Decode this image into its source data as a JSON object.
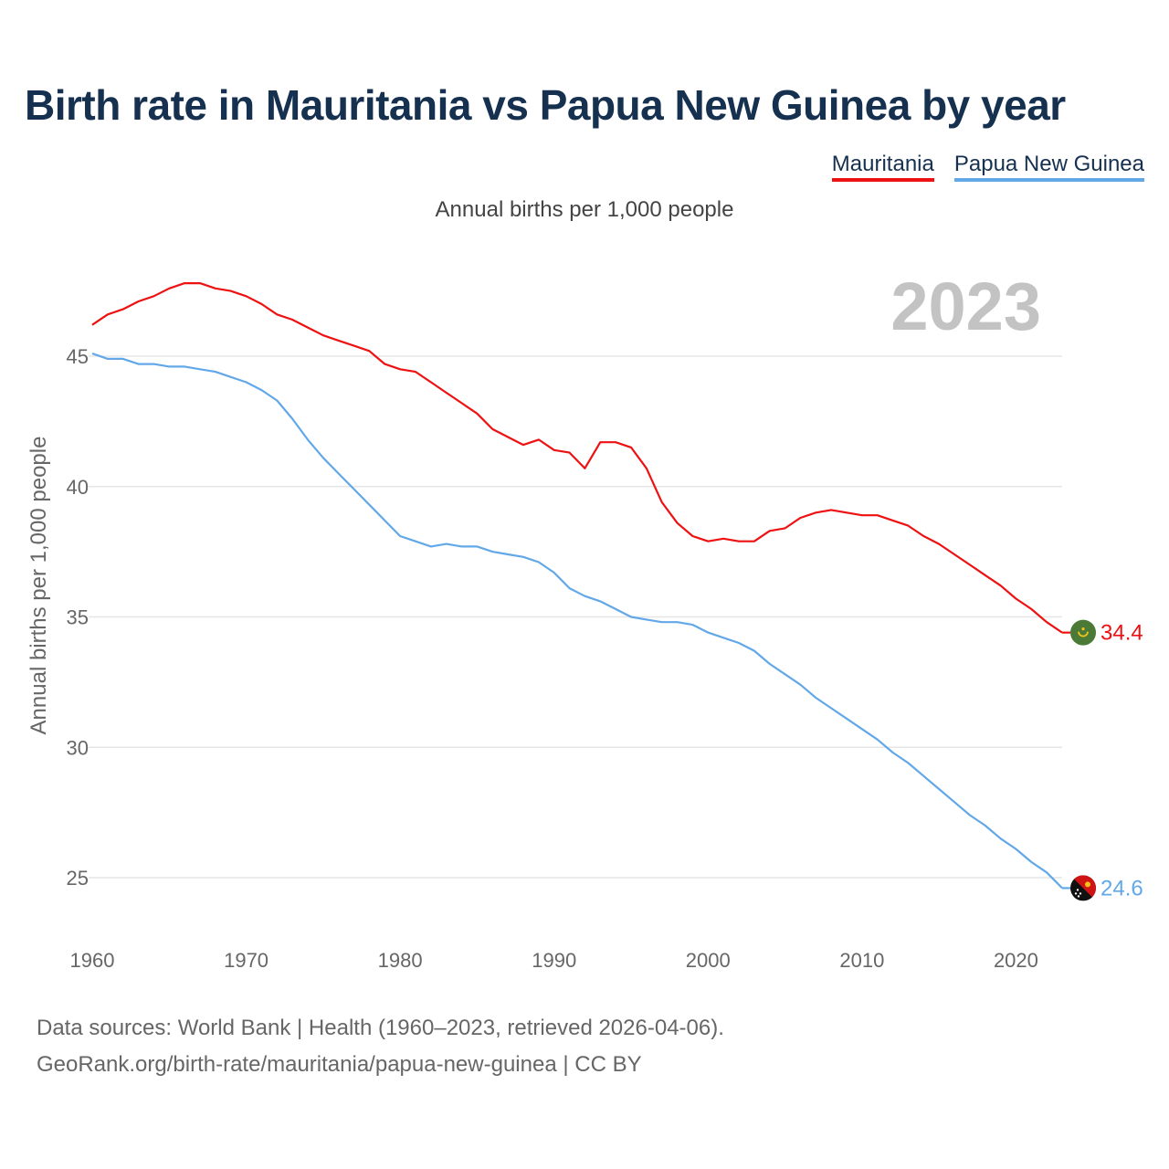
{
  "title": "Birth rate in Mauritania vs Papua New Guinea by year",
  "subtitle": "Annual births per 1,000 people",
  "legend": [
    {
      "name": "Mauritania",
      "color": "#ee1111"
    },
    {
      "name": "Papua New Guinea",
      "color": "#62a8e8"
    }
  ],
  "sources": {
    "line1": "Data sources: World Bank | Health (1960–2023, retrieved 2026-04-06).",
    "line2": "GeoRank.org/birth-rate/mauritania/papua-new-guinea | CC BY"
  },
  "chart_data": {
    "type": "line",
    "title": "Birth rate in Mauritania vs Papua New Guinea by year",
    "subtitle": "Annual births per 1,000 people",
    "year_label": "2023",
    "xlabel": "",
    "ylabel": "Annual births per 1,000 people",
    "xlim": [
      1960,
      2023
    ],
    "ylim": [
      23,
      48
    ],
    "xticks": [
      1960,
      1970,
      1980,
      1990,
      2000,
      2010,
      2020
    ],
    "yticks": [
      25,
      30,
      35,
      40,
      45
    ],
    "grid": true,
    "legend_position": "top-right",
    "x": [
      1960,
      1961,
      1962,
      1963,
      1964,
      1965,
      1966,
      1967,
      1968,
      1969,
      1970,
      1971,
      1972,
      1973,
      1974,
      1975,
      1976,
      1977,
      1978,
      1979,
      1980,
      1981,
      1982,
      1983,
      1984,
      1985,
      1986,
      1987,
      1988,
      1989,
      1990,
      1991,
      1992,
      1993,
      1994,
      1995,
      1996,
      1997,
      1998,
      1999,
      2000,
      2001,
      2002,
      2003,
      2004,
      2005,
      2006,
      2007,
      2008,
      2009,
      2010,
      2011,
      2012,
      2013,
      2014,
      2015,
      2016,
      2017,
      2018,
      2019,
      2020,
      2021,
      2022,
      2023
    ],
    "series": [
      {
        "name": "Mauritania",
        "color": "#ee1111",
        "end_label": "34.4",
        "values": [
          46.2,
          46.6,
          46.8,
          47.1,
          47.3,
          47.6,
          47.8,
          47.8,
          47.6,
          47.5,
          47.3,
          47.0,
          46.6,
          46.4,
          46.1,
          45.8,
          45.6,
          45.4,
          45.2,
          44.7,
          44.5,
          44.4,
          44.0,
          43.6,
          43.2,
          42.8,
          42.2,
          41.9,
          41.6,
          41.8,
          41.4,
          41.3,
          40.7,
          41.7,
          41.7,
          41.5,
          40.7,
          39.4,
          38.6,
          38.1,
          37.9,
          38.0,
          37.9,
          37.9,
          38.3,
          38.4,
          38.8,
          39.0,
          39.1,
          39.0,
          38.9,
          38.9,
          38.7,
          38.5,
          38.1,
          37.8,
          37.4,
          37.0,
          36.6,
          36.2,
          35.7,
          35.3,
          34.8,
          34.4
        ]
      },
      {
        "name": "Papua New Guinea",
        "color": "#62a8e8",
        "end_label": "24.6",
        "values": [
          45.1,
          44.9,
          44.9,
          44.7,
          44.7,
          44.6,
          44.6,
          44.5,
          44.4,
          44.2,
          44.0,
          43.7,
          43.3,
          42.6,
          41.8,
          41.1,
          40.5,
          39.9,
          39.3,
          38.7,
          38.1,
          37.9,
          37.7,
          37.8,
          37.7,
          37.7,
          37.5,
          37.4,
          37.3,
          37.1,
          36.7,
          36.1,
          35.8,
          35.6,
          35.3,
          35.0,
          34.9,
          34.8,
          34.8,
          34.7,
          34.4,
          34.2,
          34.0,
          33.7,
          33.2,
          32.8,
          32.4,
          31.9,
          31.5,
          31.1,
          30.7,
          30.3,
          29.8,
          29.4,
          28.9,
          28.4,
          27.9,
          27.4,
          27.0,
          26.5,
          26.1,
          25.6,
          25.2,
          24.6
        ]
      }
    ]
  }
}
